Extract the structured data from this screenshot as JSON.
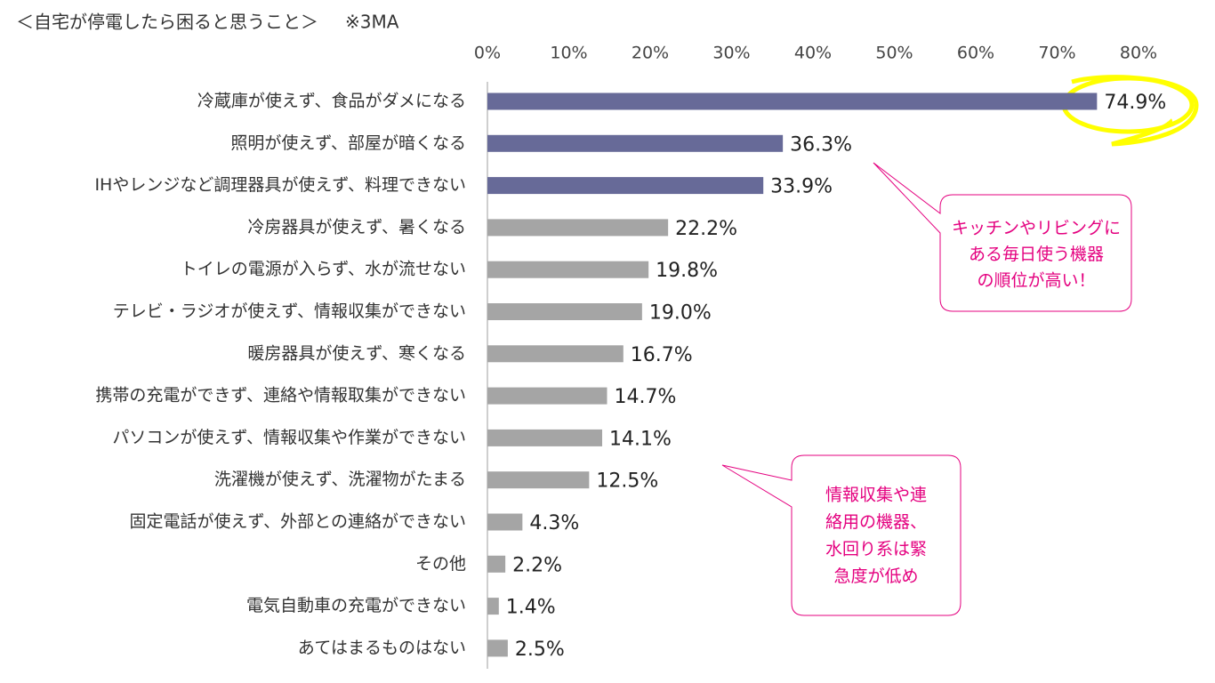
{
  "chart_data": {
    "type": "bar",
    "orientation": "horizontal",
    "title": "＜自宅が停電したら困ると思うこと＞",
    "subtitle": "※3MA",
    "categories": [
      "冷蔵庫が使えず、食品がダメになる",
      "照明が使えず、部屋が暗くなる",
      "IHやレンジなど調理器具が使えず、料理できない",
      "冷房器具が使えず、暑くなる",
      "トイレの電源が入らず、水が流せない",
      "テレビ・ラジオが使えず、情報収集ができない",
      "暖房器具が使えず、寒くなる",
      "携帯の充電ができず、連絡や情報取集ができない",
      "パソコンが使えず、情報収集や作業ができない",
      "洗濯機が使えず、洗濯物がたまる",
      "固定電話が使えず、外部との連絡ができない",
      "その他",
      "電気自動車の充電ができない",
      "あてはまるものはない"
    ],
    "values": [
      74.9,
      36.3,
      33.9,
      22.2,
      19.8,
      19.0,
      16.7,
      14.7,
      14.1,
      12.5,
      4.3,
      2.2,
      1.4,
      2.5
    ],
    "value_labels": [
      "74.9%",
      "36.3%",
      "33.9%",
      "22.2%",
      "19.8%",
      "19.0%",
      "16.7%",
      "14.7%",
      "14.1%",
      "12.5%",
      "4.3%",
      "2.2%",
      "1.4%",
      "2.5%"
    ],
    "colors": [
      "#676a98",
      "#676a98",
      "#676a98",
      "#a5a5a5",
      "#a5a5a5",
      "#a5a5a5",
      "#a5a5a5",
      "#a5a5a5",
      "#a5a5a5",
      "#a5a5a5",
      "#a5a5a5",
      "#a5a5a5",
      "#a5a5a5",
      "#a5a5a5"
    ],
    "xlim": [
      0,
      80
    ],
    "xticks": [
      {
        "value": 0,
        "label": "0%"
      },
      {
        "value": 10,
        "label": "10%"
      },
      {
        "value": 20,
        "label": "20%"
      },
      {
        "value": 30,
        "label": "30%"
      },
      {
        "value": 40,
        "label": "40%"
      },
      {
        "value": 50,
        "label": "50%"
      },
      {
        "value": 60,
        "label": "60%"
      },
      {
        "value": 70,
        "label": "70%"
      },
      {
        "value": 80,
        "label": "80%"
      }
    ],
    "annotations": [
      {
        "lines": [
          "キッチンやリビングに",
          "ある毎日使う機器",
          "の順位が高い！"
        ]
      },
      {
        "lines": [
          "情報収集や連",
          "絡用の機器、",
          "水回り系は緊",
          "急度が低め"
        ]
      }
    ]
  }
}
